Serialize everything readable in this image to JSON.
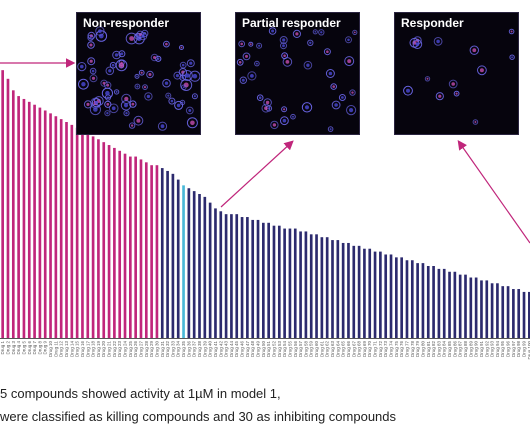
{
  "panels": [
    {
      "label": "Non-responder",
      "cells": 70
    },
    {
      "label": "Partial responder",
      "cells": 38
    },
    {
      "label": "Responder",
      "cells": 14
    }
  ],
  "notes": {
    "line1": "5 compounds showed activity at 1µM in model 1,",
    "line2": "were classified as killing compounds and 30 as inhibiting compounds"
  },
  "colors": {
    "killing": "#c0267b",
    "inhibiting": "#2c2a6e",
    "highlight": "#49b8d8",
    "axis": "#555555",
    "arrow": "#c0267b",
    "cell": "#6b66e8"
  },
  "chart_data": {
    "type": "bar",
    "xlabel": "",
    "ylabel": "",
    "ylim": [
      0,
      100
    ],
    "categories": [
      "Drug 1",
      "Drug 2",
      "Drug 3",
      "Drug 4",
      "Drug 5",
      "Drug 6",
      "Drug 7",
      "Drug 8",
      "Drug 9",
      "Drug 10",
      "Drug 11",
      "Drug 12",
      "Drug 13",
      "Drug 14",
      "Drug 15",
      "Drug 16",
      "Drug 17",
      "Drug 18",
      "Drug 19",
      "Drug 20",
      "Drug 21",
      "Drug 22",
      "Drug 23",
      "Drug 24",
      "Drug 25",
      "Drug 26",
      "Drug 27",
      "Drug 28",
      "Drug 29",
      "Drug 30",
      "Drug 31",
      "Drug 32",
      "Drug 33",
      "Drug 34",
      "Drug 35",
      "Drug 36",
      "Drug 37",
      "Drug 38",
      "Drug 39",
      "Drug 40",
      "Drug 41",
      "Drug 42",
      "Drug 43",
      "Drug 44",
      "Drug 45",
      "Drug 46",
      "Drug 47",
      "Drug 48",
      "Drug 49",
      "Drug 50",
      "Drug 51",
      "Drug 52",
      "Drug 53",
      "Drug 54",
      "Drug 55",
      "Drug 56",
      "Drug 57",
      "Drug 58",
      "Drug 59",
      "Drug 60",
      "Drug 61",
      "Drug 62",
      "Drug 63",
      "Drug 64",
      "Drug 65",
      "Drug 66",
      "Drug 67",
      "Drug 68",
      "Drug 69",
      "Drug 70",
      "Drug 71",
      "Drug 72",
      "Drug 73",
      "Drug 74",
      "Drug 75",
      "Drug 76",
      "Drug 77",
      "Drug 78",
      "Drug 79",
      "Drug 80",
      "Drug 81",
      "Drug 82",
      "Drug 83",
      "Drug 84",
      "Drug 85",
      "Drug 86",
      "Drug 87",
      "Drug 88",
      "Drug 89",
      "Drug 90",
      "Drug 91",
      "Drug 92",
      "Drug 93",
      "Drug 94",
      "Drug 95",
      "Drug 96",
      "Drug 97",
      "Drug 98",
      "Drug 99",
      "Drug 100"
    ],
    "values": [
      93,
      90,
      86,
      84,
      83,
      82,
      81,
      80,
      79,
      78,
      77,
      76,
      75,
      74,
      73,
      72,
      71,
      70,
      69,
      68,
      67,
      66,
      65,
      64,
      63,
      63,
      62,
      61,
      60,
      60,
      59,
      58,
      57,
      55,
      53,
      52,
      51,
      50,
      49,
      47,
      45,
      44,
      43,
      43,
      43,
      42,
      42,
      41,
      41,
      40,
      40,
      39,
      39,
      38,
      38,
      38,
      37,
      37,
      36,
      36,
      35,
      35,
      34,
      34,
      33,
      33,
      32,
      32,
      31,
      31,
      30,
      30,
      29,
      29,
      28,
      28,
      27,
      27,
      26,
      26,
      25,
      25,
      24,
      24,
      23,
      23,
      22,
      22,
      21,
      21,
      20,
      20,
      19,
      19,
      18,
      18,
      17,
      17,
      16,
      16
    ],
    "killing_count": 30,
    "highlight_index": 34
  }
}
